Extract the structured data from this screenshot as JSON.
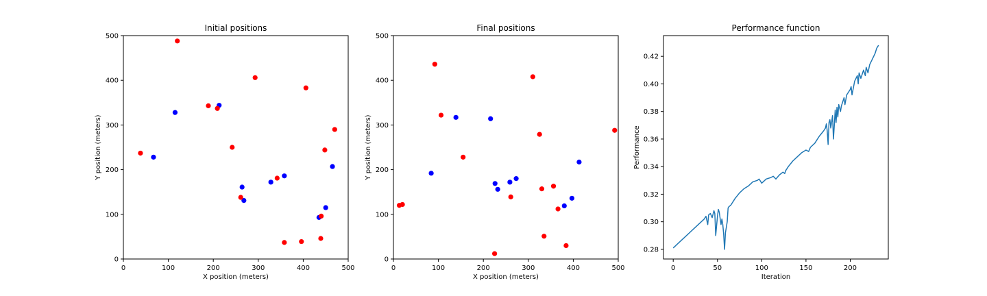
{
  "chart_data": [
    {
      "type": "scatter",
      "title": "Initial positions",
      "xlabel": "X position (meters)",
      "ylabel": "Y position (meters)",
      "xlim": [
        0,
        500
      ],
      "ylim": [
        0,
        500
      ],
      "xticks": [
        0,
        100,
        200,
        300,
        400,
        500
      ],
      "yticks": [
        0,
        100,
        200,
        300,
        400,
        500
      ],
      "grid": false,
      "series": [
        {
          "color": "#0000ff",
          "points": [
            [
              115,
              328
            ],
            [
              67,
              228
            ],
            [
              213,
              344
            ],
            [
              264,
              161
            ],
            [
              268,
              131
            ],
            [
              328,
              172
            ],
            [
              358,
              186
            ],
            [
              465,
              207
            ],
            [
              450,
              115
            ],
            [
              435,
              93
            ]
          ]
        },
        {
          "color": "#ff0000",
          "points": [
            [
              120,
              488
            ],
            [
              293,
              406
            ],
            [
              406,
              383
            ],
            [
              189,
              343
            ],
            [
              209,
              337
            ],
            [
              470,
              290
            ],
            [
              242,
              250
            ],
            [
              38,
              237
            ],
            [
              448,
              244
            ],
            [
              342,
              181
            ],
            [
              261,
              138
            ],
            [
              440,
              96
            ],
            [
              358,
              37
            ],
            [
              396,
              39
            ],
            [
              439,
              46
            ]
          ]
        }
      ]
    },
    {
      "type": "scatter",
      "title": "Final positions",
      "xlabel": "X position (meters)",
      "ylabel": "Y position (meters)",
      "xlim": [
        0,
        500
      ],
      "ylim": [
        0,
        500
      ],
      "xticks": [
        0,
        100,
        200,
        300,
        400,
        500
      ],
      "yticks": [
        0,
        100,
        200,
        300,
        400,
        500
      ],
      "grid": false,
      "series": [
        {
          "color": "#0000ff",
          "points": [
            [
              139,
              317
            ],
            [
              216,
              314
            ],
            [
              84,
              192
            ],
            [
              226,
              169
            ],
            [
              232,
              156
            ],
            [
              259,
              172
            ],
            [
              273,
              180
            ],
            [
              413,
              217
            ],
            [
              397,
              136
            ],
            [
              380,
              119
            ]
          ]
        },
        {
          "color": "#ff0000",
          "points": [
            [
              92,
              436
            ],
            [
              310,
              408
            ],
            [
              106,
              322
            ],
            [
              325,
              279
            ],
            [
              492,
              288
            ],
            [
              155,
              228
            ],
            [
              356,
              163
            ],
            [
              330,
              157
            ],
            [
              261,
              139
            ],
            [
              366,
              112
            ],
            [
              20,
              122
            ],
            [
              13,
              120
            ],
            [
              335,
              51
            ],
            [
              384,
              30
            ],
            [
              225,
              12
            ]
          ]
        }
      ]
    },
    {
      "type": "line",
      "title": "Performance function",
      "xlabel": "Iteration",
      "ylabel": "Performance",
      "xlim": [
        -11,
        243
      ],
      "ylim": [
        0.273,
        0.435
      ],
      "xticks": [
        0,
        50,
        100,
        150,
        200
      ],
      "yticks": [
        0.28,
        0.3,
        0.32,
        0.34,
        0.36,
        0.38,
        0.4,
        0.42
      ],
      "ytick_labels": [
        "0.28",
        "0.30",
        "0.32",
        "0.34",
        "0.36",
        "0.38",
        "0.40",
        "0.42"
      ],
      "grid": false,
      "series": [
        {
          "color": "#1f77b4",
          "x": [
            0,
            5,
            10,
            15,
            20,
            25,
            30,
            35,
            37,
            39,
            40,
            42,
            44,
            46,
            47,
            48,
            50,
            51,
            52,
            54,
            55,
            56,
            57,
            58,
            59,
            60,
            61,
            62,
            63,
            65,
            70,
            75,
            80,
            85,
            90,
            95,
            97,
            100,
            105,
            110,
            113,
            116,
            120,
            124,
            126,
            127,
            128,
            130,
            135,
            140,
            145,
            150,
            153,
            155,
            160,
            165,
            170,
            172,
            173,
            174,
            175,
            176,
            177,
            178,
            180,
            181,
            182,
            183,
            184,
            185,
            186,
            187,
            189,
            190,
            191,
            193,
            194,
            196,
            198,
            200,
            201,
            202,
            205,
            208,
            209,
            210,
            212,
            215,
            217,
            218,
            220,
            222,
            225,
            228,
            230,
            232
          ],
          "y": [
            0.281,
            0.284,
            0.287,
            0.29,
            0.293,
            0.296,
            0.299,
            0.302,
            0.304,
            0.298,
            0.305,
            0.306,
            0.303,
            0.308,
            0.306,
            0.29,
            0.304,
            0.309,
            0.307,
            0.298,
            0.302,
            0.298,
            0.291,
            0.28,
            0.292,
            0.296,
            0.3,
            0.31,
            0.311,
            0.312,
            0.317,
            0.321,
            0.324,
            0.326,
            0.329,
            0.33,
            0.331,
            0.328,
            0.331,
            0.332,
            0.333,
            0.331,
            0.334,
            0.336,
            0.335,
            0.337,
            0.338,
            0.34,
            0.344,
            0.347,
            0.35,
            0.352,
            0.351,
            0.354,
            0.357,
            0.362,
            0.366,
            0.368,
            0.371,
            0.366,
            0.356,
            0.372,
            0.374,
            0.368,
            0.377,
            0.36,
            0.37,
            0.381,
            0.372,
            0.383,
            0.376,
            0.385,
            0.38,
            0.384,
            0.386,
            0.39,
            0.385,
            0.392,
            0.394,
            0.396,
            0.398,
            0.392,
            0.402,
            0.406,
            0.4,
            0.408,
            0.404,
            0.41,
            0.406,
            0.412,
            0.408,
            0.414,
            0.418,
            0.422,
            0.426,
            0.428
          ]
        }
      ]
    }
  ]
}
